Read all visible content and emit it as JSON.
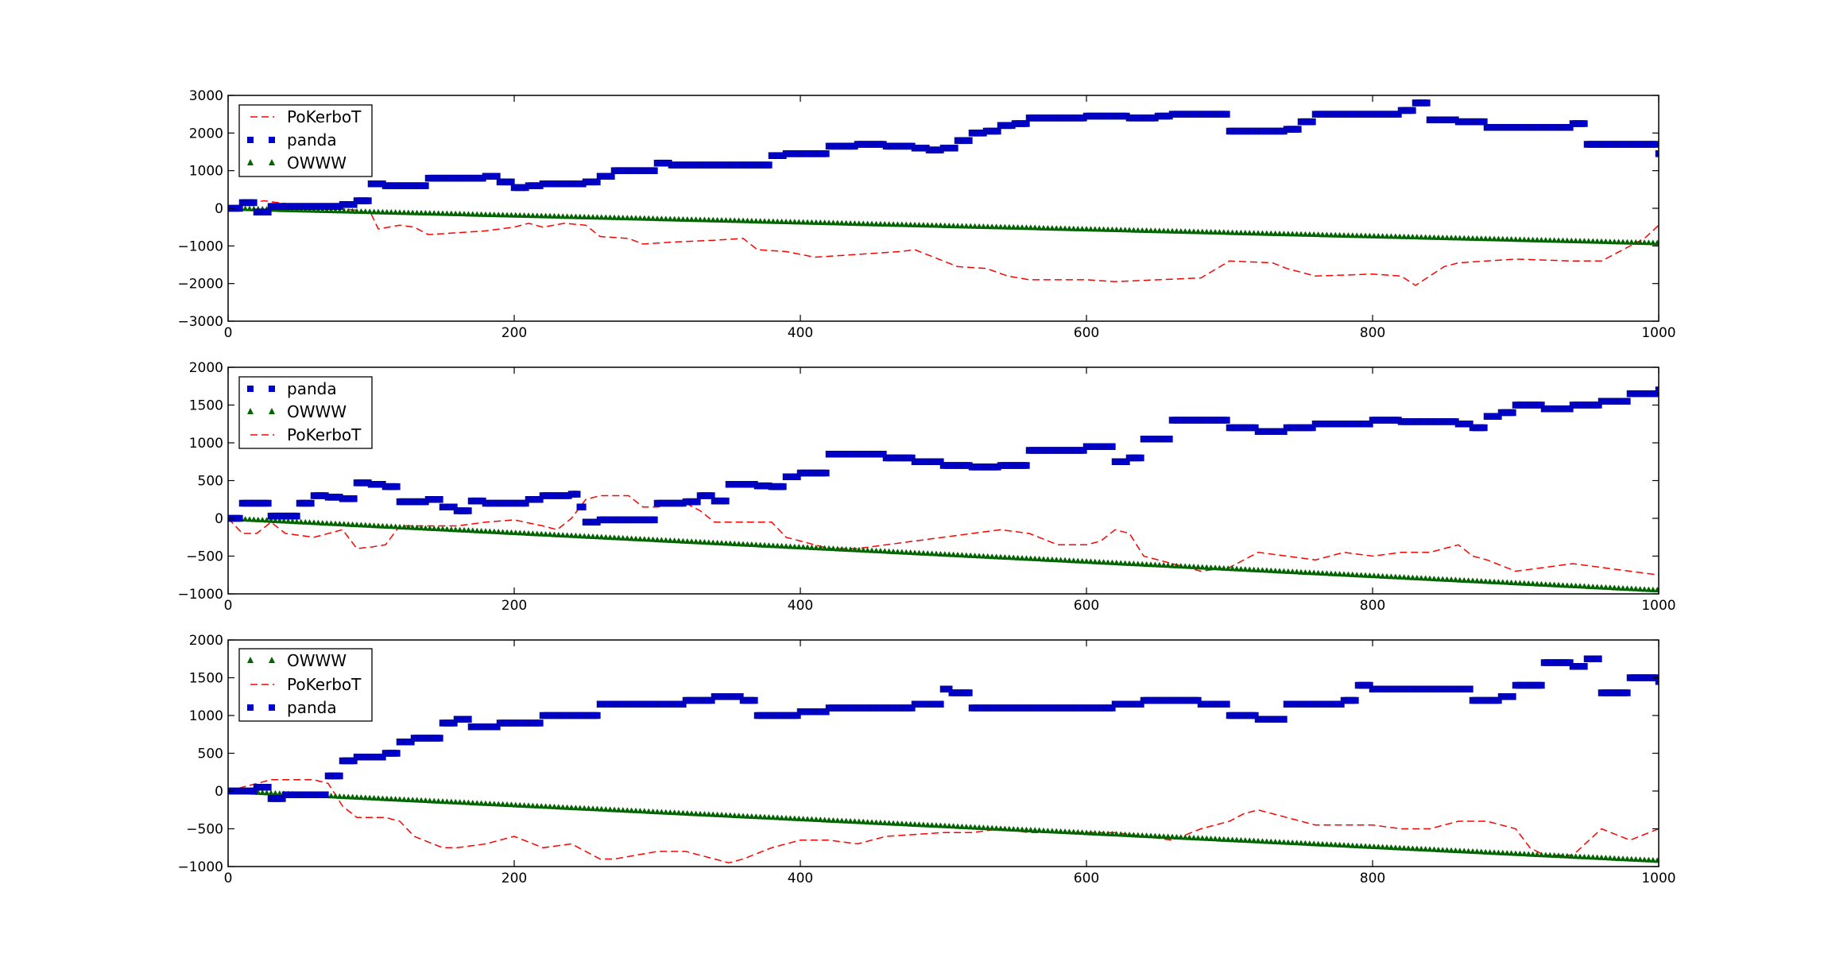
{
  "chart_data": [
    {
      "type": "line",
      "title": "",
      "xlabel": "",
      "ylabel": "",
      "xlim": [
        0,
        1000
      ],
      "ylim": [
        -3000,
        3000
      ],
      "xticks": [
        "0",
        "200",
        "400",
        "600",
        "800",
        "1000"
      ],
      "yticks": [
        "3000",
        "2000",
        "1000",
        "0",
        "−1000",
        "−2000",
        "−3000"
      ],
      "legend_position": "upper-left",
      "legend": [
        "PoKerboT",
        "panda",
        "OWWW"
      ],
      "series": [
        {
          "name": "PoKerboT",
          "style": "dashed-line",
          "color": "#ff0000",
          "x": [
            0,
            25,
            45,
            60,
            75,
            90,
            100,
            105,
            120,
            130,
            140,
            160,
            180,
            200,
            210,
            220,
            235,
            250,
            260,
            280,
            290,
            310,
            340,
            360,
            370,
            390,
            410,
            430,
            450,
            470,
            480,
            490,
            510,
            530,
            545,
            560,
            600,
            620,
            650,
            680,
            700,
            730,
            740,
            760,
            800,
            820,
            830,
            850,
            860,
            900,
            940,
            960,
            990,
            1000
          ],
          "y": [
            0,
            200,
            100,
            50,
            0,
            -50,
            -150,
            -550,
            -450,
            -500,
            -700,
            -650,
            -600,
            -500,
            -400,
            -500,
            -400,
            -450,
            -750,
            -800,
            -950,
            -900,
            -850,
            -800,
            -1100,
            -1150,
            -1300,
            -1250,
            -1200,
            -1150,
            -1100,
            -1250,
            -1550,
            -1600,
            -1800,
            -1900,
            -1900,
            -1950,
            -1900,
            -1850,
            -1400,
            -1450,
            -1600,
            -1800,
            -1750,
            -1800,
            -2050,
            -1550,
            -1450,
            -1350,
            -1400,
            -1400,
            -800,
            -450
          ]
        },
        {
          "name": "panda",
          "style": "square-marker",
          "color": "#0000cc",
          "x": [
            0,
            10,
            20,
            30,
            40,
            60,
            80,
            90,
            100,
            110,
            120,
            140,
            160,
            180,
            190,
            200,
            210,
            220,
            240,
            250,
            260,
            270,
            280,
            300,
            310,
            340,
            360,
            380,
            390,
            400,
            420,
            440,
            460,
            480,
            490,
            500,
            510,
            520,
            530,
            540,
            550,
            560,
            600,
            610,
            620,
            630,
            650,
            660,
            680,
            700,
            720,
            740,
            750,
            760,
            780,
            800,
            820,
            830,
            840,
            860,
            880,
            900,
            940,
            950,
            990,
            1000
          ],
          "y": [
            0,
            150,
            -100,
            50,
            50,
            50,
            100,
            200,
            650,
            600,
            600,
            800,
            800,
            850,
            700,
            550,
            600,
            650,
            650,
            700,
            850,
            1000,
            1000,
            1200,
            1150,
            1150,
            1150,
            1400,
            1450,
            1450,
            1650,
            1700,
            1650,
            1600,
            1550,
            1600,
            1800,
            2000,
            2050,
            2200,
            2250,
            2400,
            2450,
            2450,
            2450,
            2400,
            2450,
            2500,
            2500,
            2050,
            2050,
            2100,
            2300,
            2500,
            2500,
            2500,
            2600,
            2800,
            2350,
            2300,
            2150,
            2150,
            2250,
            1700,
            1700,
            1450
          ]
        },
        {
          "name": "OWWW",
          "style": "triangle-marker",
          "color": "#006400",
          "x": [
            0,
            1000
          ],
          "y": [
            0,
            -920
          ]
        }
      ]
    },
    {
      "type": "line",
      "title": "",
      "xlabel": "",
      "ylabel": "",
      "xlim": [
        0,
        1000
      ],
      "ylim": [
        -1000,
        2000
      ],
      "xticks": [
        "0",
        "200",
        "400",
        "600",
        "800",
        "1000"
      ],
      "yticks": [
        "2000",
        "1500",
        "1000",
        "500",
        "0",
        "−500",
        "−1000"
      ],
      "legend_position": "upper-left",
      "legend": [
        "panda",
        "OWWW",
        "PoKerboT"
      ],
      "series": [
        {
          "name": "panda",
          "style": "square-marker",
          "color": "#0000cc",
          "x": [
            0,
            10,
            25,
            30,
            40,
            50,
            60,
            70,
            80,
            90,
            100,
            110,
            120,
            140,
            150,
            160,
            170,
            180,
            190,
            200,
            210,
            220,
            240,
            245,
            250,
            260,
            280,
            300,
            320,
            330,
            340,
            350,
            370,
            380,
            390,
            400,
            420,
            440,
            460,
            480,
            500,
            520,
            540,
            560,
            580,
            600,
            610,
            620,
            630,
            640,
            660,
            680,
            700,
            720,
            740,
            760,
            780,
            800,
            820,
            840,
            860,
            870,
            880,
            890,
            900,
            920,
            940,
            960,
            980,
            1000
          ],
          "y": [
            0,
            200,
            200,
            30,
            30,
            200,
            300,
            280,
            260,
            470,
            450,
            420,
            220,
            250,
            150,
            100,
            230,
            200,
            200,
            200,
            250,
            300,
            320,
            150,
            -50,
            -20,
            -20,
            200,
            220,
            300,
            230,
            450,
            430,
            420,
            550,
            600,
            850,
            850,
            800,
            750,
            700,
            680,
            700,
            900,
            900,
            950,
            950,
            750,
            800,
            1050,
            1300,
            1300,
            1200,
            1150,
            1200,
            1250,
            1250,
            1300,
            1280,
            1280,
            1250,
            1200,
            1350,
            1400,
            1500,
            1450,
            1500,
            1550,
            1650,
            1700
          ]
        },
        {
          "name": "OWWW",
          "style": "triangle-marker",
          "color": "#006400",
          "x": [
            0,
            1000
          ],
          "y": [
            0,
            -950
          ]
        },
        {
          "name": "PoKerboT",
          "style": "dashed-line",
          "color": "#ff0000",
          "x": [
            0,
            10,
            20,
            30,
            40,
            60,
            80,
            90,
            100,
            110,
            120,
            140,
            160,
            180,
            200,
            220,
            230,
            240,
            250,
            260,
            280,
            290,
            300,
            320,
            330,
            340,
            350,
            360,
            380,
            390,
            400,
            420,
            440,
            460,
            480,
            500,
            520,
            540,
            560,
            580,
            600,
            610,
            620,
            630,
            640,
            660,
            680,
            700,
            720,
            740,
            760,
            780,
            800,
            820,
            840,
            860,
            870,
            880,
            900,
            920,
            940,
            960,
            980,
            1000
          ],
          "y": [
            0,
            -200,
            -200,
            -50,
            -200,
            -250,
            -150,
            -400,
            -380,
            -350,
            -100,
            -100,
            -100,
            -50,
            -20,
            -100,
            -150,
            0,
            250,
            300,
            300,
            150,
            150,
            200,
            100,
            -50,
            -50,
            -50,
            -50,
            -250,
            -300,
            -400,
            -400,
            -350,
            -300,
            -250,
            -200,
            -150,
            -200,
            -350,
            -350,
            -300,
            -150,
            -200,
            -500,
            -600,
            -700,
            -650,
            -450,
            -500,
            -550,
            -450,
            -500,
            -450,
            -450,
            -350,
            -500,
            -550,
            -700,
            -650,
            -600,
            -650,
            -700,
            -750
          ]
        }
      ]
    },
    {
      "type": "line",
      "title": "",
      "xlabel": "",
      "ylabel": "",
      "xlim": [
        0,
        1000
      ],
      "ylim": [
        -1000,
        2000
      ],
      "xticks": [
        "0",
        "200",
        "400",
        "600",
        "800",
        "1000"
      ],
      "yticks": [
        "2000",
        "1500",
        "1000",
        "500",
        "0",
        "−500",
        "−1000"
      ],
      "legend_position": "upper-left",
      "legend": [
        "OWWW",
        "PoKerboT",
        "panda"
      ],
      "series": [
        {
          "name": "OWWW",
          "style": "triangle-marker",
          "color": "#006400",
          "x": [
            0,
            1000
          ],
          "y": [
            0,
            -920
          ]
        },
        {
          "name": "PoKerboT",
          "style": "dashed-line",
          "color": "#ff0000",
          "x": [
            0,
            20,
            30,
            60,
            70,
            80,
            90,
            110,
            120,
            130,
            150,
            160,
            180,
            200,
            220,
            240,
            260,
            270,
            300,
            320,
            330,
            340,
            350,
            360,
            380,
            400,
            420,
            440,
            460,
            500,
            520,
            540,
            560,
            600,
            620,
            640,
            660,
            680,
            700,
            710,
            720,
            730,
            760,
            800,
            820,
            840,
            860,
            880,
            900,
            910,
            920,
            940,
            960,
            980,
            1000
          ],
          "y": [
            0,
            100,
            150,
            150,
            100,
            -200,
            -350,
            -350,
            -400,
            -600,
            -750,
            -750,
            -700,
            -600,
            -750,
            -700,
            -900,
            -900,
            -800,
            -800,
            -850,
            -900,
            -950,
            -900,
            -750,
            -650,
            -650,
            -700,
            -600,
            -550,
            -550,
            -500,
            -550,
            -550,
            -550,
            -600,
            -650,
            -500,
            -400,
            -300,
            -250,
            -300,
            -450,
            -450,
            -500,
            -500,
            -400,
            -400,
            -500,
            -750,
            -850,
            -850,
            -500,
            -650,
            -500
          ]
        },
        {
          "name": "panda",
          "style": "square-marker",
          "color": "#0000cc",
          "x": [
            0,
            20,
            30,
            40,
            50,
            60,
            70,
            80,
            90,
            100,
            110,
            120,
            130,
            140,
            150,
            160,
            170,
            180,
            190,
            200,
            220,
            240,
            260,
            270,
            300,
            320,
            340,
            360,
            370,
            390,
            400,
            420,
            440,
            460,
            480,
            500,
            505,
            520,
            540,
            560,
            580,
            600,
            620,
            640,
            660,
            680,
            700,
            720,
            740,
            760,
            780,
            790,
            800,
            820,
            840,
            860,
            870,
            880,
            890,
            900,
            920,
            940,
            950,
            960,
            980,
            1000
          ],
          "y": [
            0,
            50,
            -100,
            -50,
            -50,
            -50,
            200,
            400,
            450,
            450,
            500,
            650,
            700,
            700,
            900,
            950,
            850,
            850,
            900,
            900,
            1000,
            1000,
            1150,
            1150,
            1150,
            1200,
            1250,
            1200,
            1000,
            1000,
            1050,
            1100,
            1100,
            1100,
            1150,
            1350,
            1300,
            1100,
            1100,
            1100,
            1100,
            1100,
            1150,
            1200,
            1200,
            1150,
            1000,
            950,
            1150,
            1150,
            1200,
            1400,
            1350,
            1350,
            1350,
            1350,
            1200,
            1200,
            1250,
            1400,
            1700,
            1650,
            1750,
            1300,
            1500,
            1450
          ]
        }
      ]
    }
  ]
}
